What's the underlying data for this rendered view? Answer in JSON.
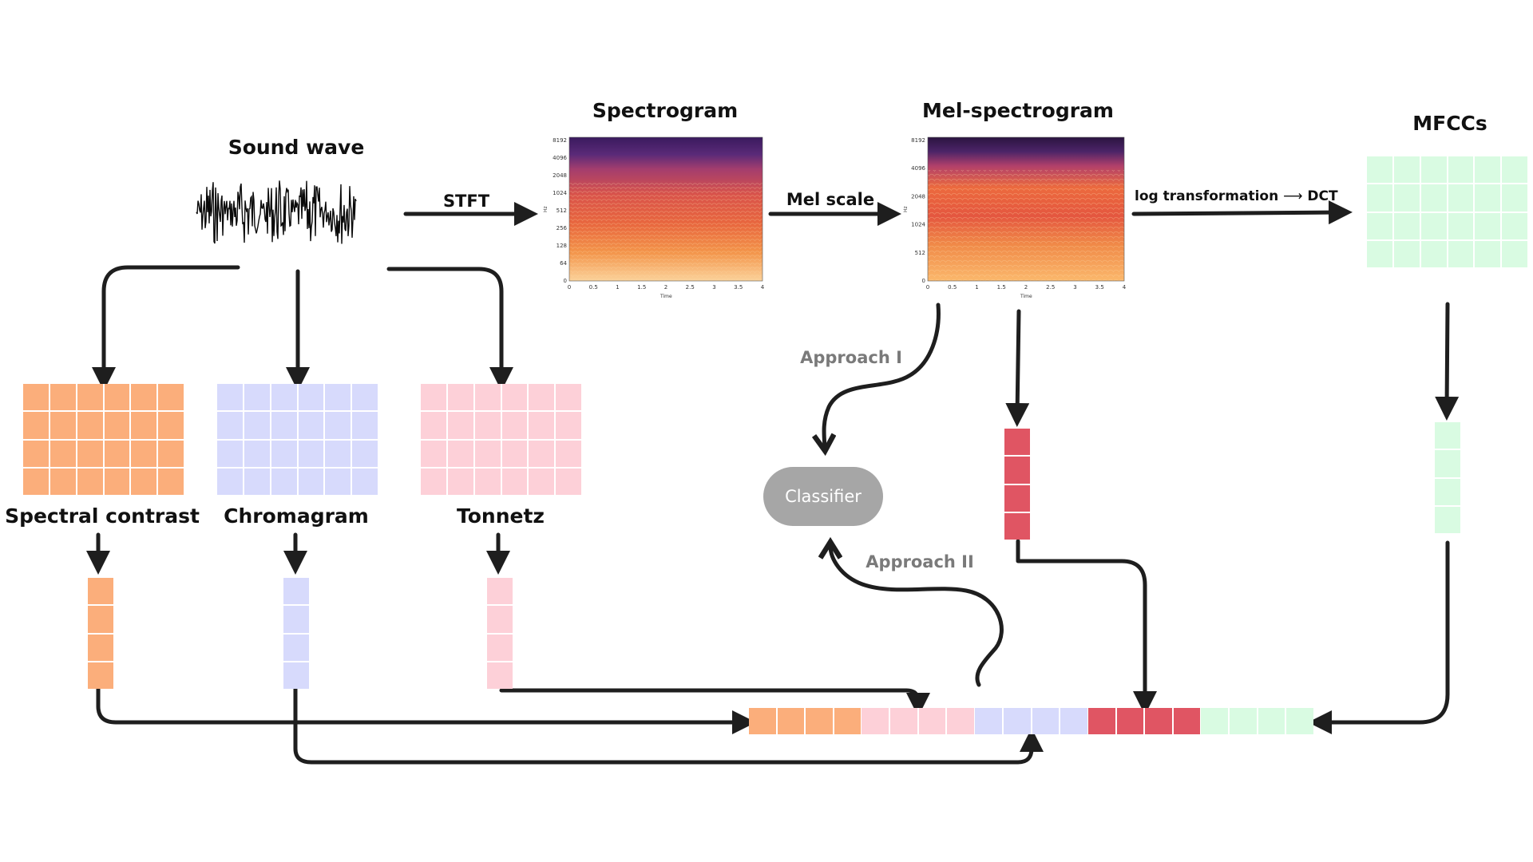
{
  "labels": {
    "sound_wave": "Sound wave",
    "spectrogram": "Spectrogram",
    "mel_spectrogram": "Mel-spectrogram",
    "mfccs": "MFCCs",
    "stft": "STFT",
    "mel_scale": "Mel scale",
    "log_transformation": "log transformation",
    "dct": "DCT",
    "spectral_contrast": "Spectral contrast",
    "chromagram": "Chromagram",
    "tonnetz": "Tonnetz",
    "classifier": "Classifier",
    "approach_1": "Approach I",
    "approach_2": "Approach II"
  },
  "spectrogram_axes": {
    "y_ticks": [
      "8192",
      "4096",
      "2048",
      "1024",
      "512",
      "256",
      "128",
      "64",
      "0"
    ],
    "x_ticks": [
      "0",
      "0.5",
      "1",
      "1.5",
      "2",
      "2.5",
      "3",
      "3.5",
      "4"
    ],
    "y_label": "Hz",
    "x_label": "Time"
  },
  "mel_spectrogram_axes": {
    "y_ticks": [
      "8192",
      "4096",
      "2048",
      "1024",
      "512",
      "0"
    ],
    "x_ticks": [
      "0",
      "0.5",
      "1",
      "1.5",
      "2",
      "2.5",
      "3",
      "3.5",
      "4"
    ],
    "y_label": "Hz",
    "x_label": "Time"
  },
  "colors": {
    "orange": "#fbae7b",
    "lavender": "#d7dafc",
    "pink": "#fdd0d8",
    "red": "#e05563",
    "mint": "#d9fbe2",
    "classifier_gray": "#a6a6a6",
    "arrow": "#1e1e1e"
  }
}
